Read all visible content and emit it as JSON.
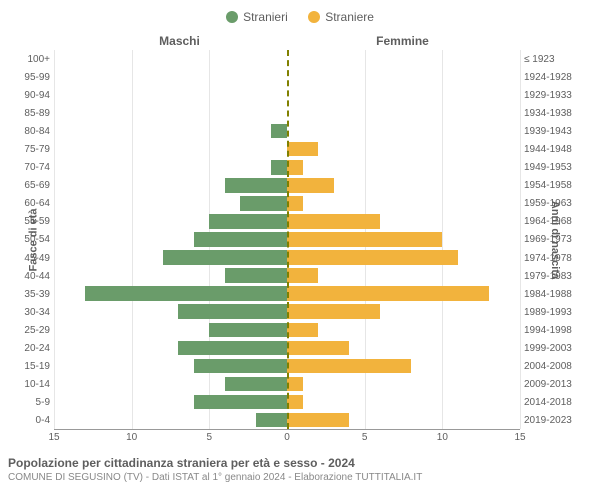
{
  "legend": {
    "male": {
      "label": "Stranieri",
      "color": "#6a9c6a"
    },
    "female": {
      "label": "Straniere",
      "color": "#f2b33d"
    }
  },
  "headers": {
    "left": "Maschi",
    "right": "Femmine"
  },
  "axes": {
    "left_label": "Fasce di età",
    "right_label": "Anni di nascita"
  },
  "chart": {
    "type": "population-pyramid",
    "xlim": 15,
    "xticks_left": [
      15,
      10,
      5,
      0
    ],
    "xticks_right": [
      0,
      5,
      10,
      15
    ],
    "background_color": "#ffffff",
    "grid_color": "#e6e6e6",
    "center_color": "#808000",
    "bar_height_pct": 80,
    "rows": [
      {
        "age": "100+",
        "birth": "≤ 1923",
        "m": 0,
        "f": 0
      },
      {
        "age": "95-99",
        "birth": "1924-1928",
        "m": 0,
        "f": 0
      },
      {
        "age": "90-94",
        "birth": "1929-1933",
        "m": 0,
        "f": 0
      },
      {
        "age": "85-89",
        "birth": "1934-1938",
        "m": 0,
        "f": 0
      },
      {
        "age": "80-84",
        "birth": "1939-1943",
        "m": 1,
        "f": 0
      },
      {
        "age": "75-79",
        "birth": "1944-1948",
        "m": 0,
        "f": 2
      },
      {
        "age": "70-74",
        "birth": "1949-1953",
        "m": 1,
        "f": 1
      },
      {
        "age": "65-69",
        "birth": "1954-1958",
        "m": 4,
        "f": 3
      },
      {
        "age": "60-64",
        "birth": "1959-1963",
        "m": 3,
        "f": 1
      },
      {
        "age": "55-59",
        "birth": "1964-1968",
        "m": 5,
        "f": 6
      },
      {
        "age": "50-54",
        "birth": "1969-1973",
        "m": 6,
        "f": 10
      },
      {
        "age": "45-49",
        "birth": "1974-1978",
        "m": 8,
        "f": 11
      },
      {
        "age": "40-44",
        "birth": "1979-1983",
        "m": 4,
        "f": 2
      },
      {
        "age": "35-39",
        "birth": "1984-1988",
        "m": 13,
        "f": 13
      },
      {
        "age": "30-34",
        "birth": "1989-1993",
        "m": 7,
        "f": 6
      },
      {
        "age": "25-29",
        "birth": "1994-1998",
        "m": 5,
        "f": 2
      },
      {
        "age": "20-24",
        "birth": "1999-2003",
        "m": 7,
        "f": 4
      },
      {
        "age": "15-19",
        "birth": "2004-2008",
        "m": 6,
        "f": 8
      },
      {
        "age": "10-14",
        "birth": "2009-2013",
        "m": 4,
        "f": 1
      },
      {
        "age": "5-9",
        "birth": "2014-2018",
        "m": 6,
        "f": 1
      },
      {
        "age": "0-4",
        "birth": "2019-2023",
        "m": 2,
        "f": 4
      }
    ]
  },
  "footer": {
    "title": "Popolazione per cittadinanza straniera per età e sesso - 2024",
    "subtitle": "COMUNE DI SEGUSINO (TV) - Dati ISTAT al 1° gennaio 2024 - Elaborazione TUTTITALIA.IT"
  }
}
